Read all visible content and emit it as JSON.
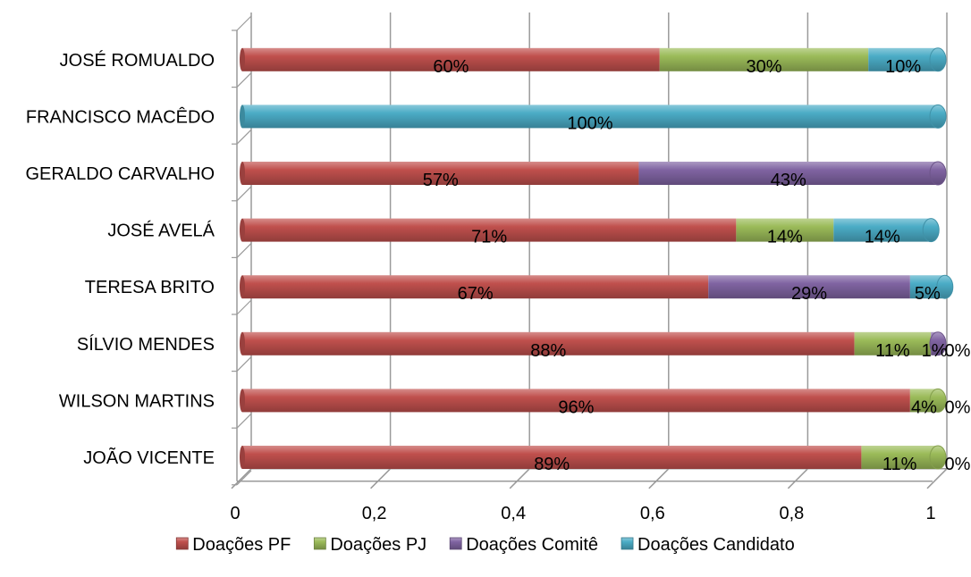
{
  "chart_data": {
    "type": "bar",
    "orientation": "horizontal",
    "stacked": true,
    "style": "3d-cylinder",
    "categories": [
      "JOSÉ ROMUALDO",
      "FRANCISCO MACÊDO",
      "GERALDO CARVALHO",
      "JOSÉ AVELÁ",
      "TERESA BRITO",
      "SÍLVIO MENDES",
      "WILSON MARTINS",
      "JOÃO VICENTE"
    ],
    "series": [
      {
        "name": "Doações PF",
        "color": "#c0504d",
        "values": [
          0.6,
          0.0,
          0.57,
          0.71,
          0.67,
          0.88,
          0.96,
          0.89
        ],
        "labels": [
          "60%",
          "",
          "57%",
          "71%",
          "67%",
          "88%",
          "96%",
          "89%"
        ]
      },
      {
        "name": "Doações PJ",
        "color": "#9bbb59",
        "values": [
          0.3,
          0.0,
          0.0,
          0.14,
          0.0,
          0.11,
          0.04,
          0.11
        ],
        "labels": [
          "30%",
          "",
          "",
          "14%",
          "",
          "11%",
          "4%",
          "11%"
        ]
      },
      {
        "name": "Doações Comitê",
        "color": "#8064a2",
        "values": [
          0.0,
          0.0,
          0.43,
          0.0,
          0.29,
          0.01,
          0.0,
          0.0
        ],
        "labels": [
          "",
          "",
          "43%",
          "",
          "29%",
          "1%",
          "",
          ""
        ]
      },
      {
        "name": "Doações Candidato",
        "color": "#4bacc6",
        "values": [
          0.1,
          1.0,
          0.0,
          0.14,
          0.05,
          0.0,
          0.0,
          0.0
        ],
        "labels": [
          "10%",
          "100%",
          "",
          "14%",
          "5%",
          "0%",
          "0%",
          "0%"
        ]
      }
    ],
    "xlim": [
      0,
      1
    ],
    "xticks": [
      "0",
      "0,2",
      "0,4",
      "0,6",
      "0,8",
      "1"
    ],
    "grid": true,
    "legend_position": "bottom",
    "title": "",
    "xlabel": "",
    "ylabel": ""
  }
}
